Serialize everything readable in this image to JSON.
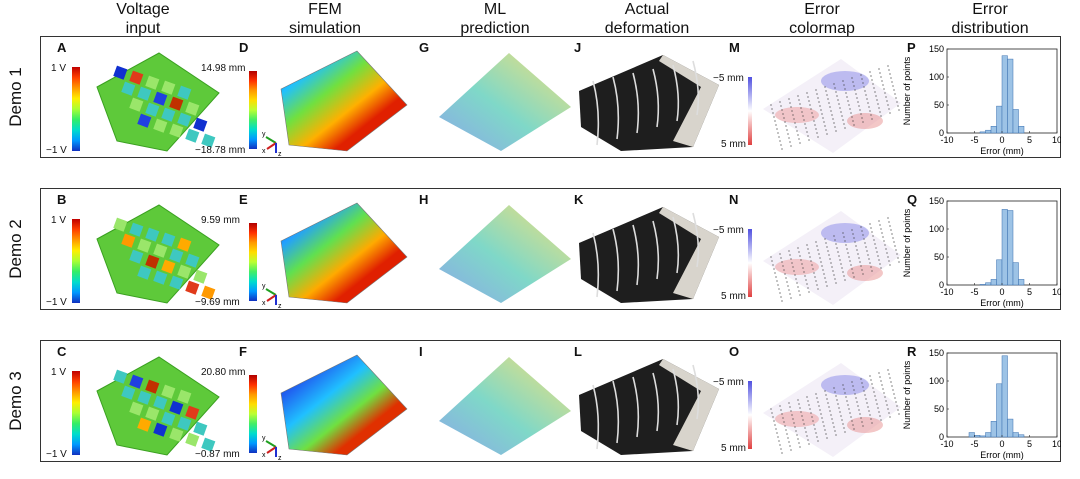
{
  "columns": [
    {
      "l1": "Voltage",
      "l2": "input"
    },
    {
      "l1": "FEM",
      "l2": "simulation"
    },
    {
      "l1": "ML",
      "l2": "prediction"
    },
    {
      "l1": "Actual",
      "l2": "deformation"
    },
    {
      "l1": "Error",
      "l2": "colormap"
    },
    {
      "l1": "Error",
      "l2": "distribution"
    }
  ],
  "rows": [
    {
      "label": "Demo 1",
      "panels": [
        "A",
        "D",
        "G",
        "J",
        "M",
        "P"
      ],
      "voltage_top": "1 V",
      "voltage_bottom": "−1 V",
      "fem_top": "14.98 mm",
      "fem_bottom": "−18.78 mm",
      "err_top": "−5 mm",
      "err_bottom": "5 mm"
    },
    {
      "label": "Demo 2",
      "panels": [
        "B",
        "E",
        "H",
        "K",
        "N",
        "Q"
      ],
      "voltage_top": "1 V",
      "voltage_bottom": "−1 V",
      "fem_top": "9.59 mm",
      "fem_bottom": "−9.69 mm",
      "err_top": "−5 mm",
      "err_bottom": "5 mm"
    },
    {
      "label": "Demo 3",
      "panels": [
        "C",
        "F",
        "I",
        "L",
        "O",
        "R"
      ],
      "voltage_top": "1 V",
      "voltage_bottom": "−1 V",
      "fem_top": "20.80 mm",
      "fem_bottom": "−0.87 mm",
      "err_top": "−5 mm",
      "err_bottom": "5 mm"
    }
  ],
  "axes_icon": {
    "y": "y",
    "x": "x",
    "z": "z"
  },
  "chart_data": [
    {
      "type": "bar",
      "panel": "P",
      "xlabel": "Error (mm)",
      "ylabel": "Number of points",
      "xlim": [
        -10,
        10
      ],
      "ylim": [
        0,
        150
      ],
      "xticks": [
        -10,
        -5,
        0,
        5,
        10
      ],
      "yticks": [
        0,
        50,
        100,
        150
      ],
      "bins": [
        -4,
        -3,
        -2,
        -1,
        0,
        1,
        2,
        3
      ],
      "values": [
        2,
        5,
        12,
        48,
        138,
        132,
        42,
        12
      ]
    },
    {
      "type": "bar",
      "panel": "Q",
      "xlabel": "Error (mm)",
      "ylabel": "Number of points",
      "xlim": [
        -10,
        10
      ],
      "ylim": [
        0,
        150
      ],
      "xticks": [
        -10,
        -5,
        0,
        5,
        10
      ],
      "yticks": [
        0,
        50,
        100,
        150
      ],
      "bins": [
        -4,
        -3,
        -2,
        -1,
        0,
        1,
        2,
        3
      ],
      "values": [
        1,
        4,
        10,
        45,
        135,
        133,
        40,
        10
      ]
    },
    {
      "type": "bar",
      "panel": "R",
      "xlabel": "Error (mm)",
      "ylabel": "Number of points",
      "xlim": [
        -10,
        10
      ],
      "ylim": [
        0,
        150
      ],
      "xticks": [
        -10,
        -5,
        0,
        5,
        10
      ],
      "yticks": [
        0,
        50,
        100,
        150
      ],
      "bins": [
        -6,
        -5,
        -4,
        -3,
        -2,
        -1,
        0,
        1,
        2,
        3
      ],
      "values": [
        8,
        3,
        2,
        8,
        28,
        95,
        145,
        32,
        8,
        4
      ]
    }
  ],
  "colors": {
    "jet_top": "#c00000",
    "jet_bottom": "#1020c0",
    "err_neg": "#5a5ae0",
    "err_pos": "#e05050",
    "bar": "#9dc3e6"
  }
}
